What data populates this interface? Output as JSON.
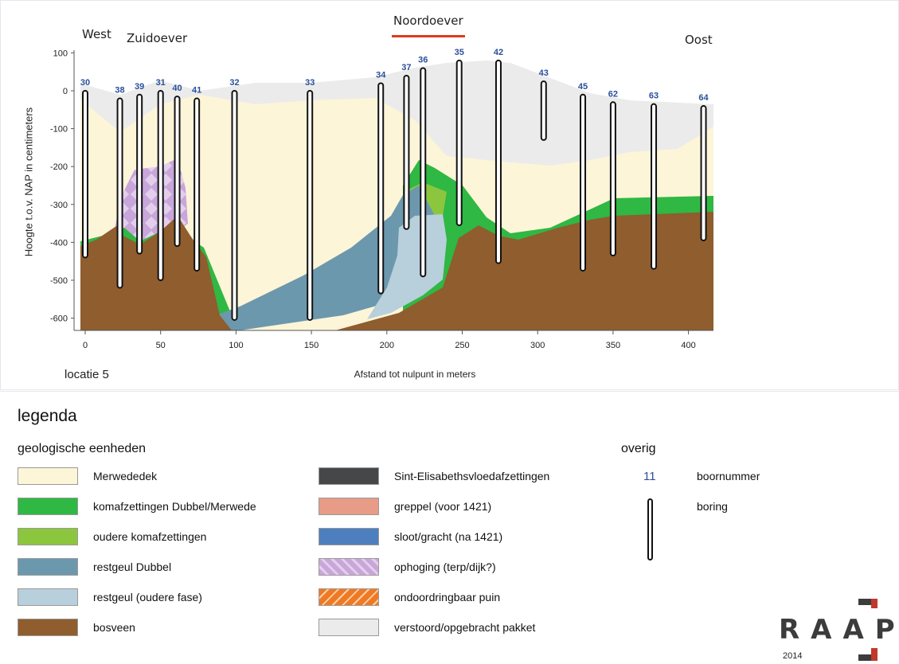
{
  "header": {
    "west": "West",
    "zuidoever": "Zuidoever",
    "noordoever": "Noordoever",
    "oost": "Oost"
  },
  "axes": {
    "ylabel": "Hoogte t.o.v. NAP in centimeters",
    "xlabel": "Afstand tot nulpunt in meters",
    "yticks": [
      "100",
      "0",
      "-100",
      "-200",
      "-300",
      "-400",
      "-500",
      "-600"
    ],
    "xticks": [
      "0",
      "50",
      "100",
      "150",
      "200",
      "250",
      "300",
      "350",
      "400"
    ]
  },
  "location_label": "locatie 5",
  "borings": [
    {
      "num": "30",
      "x": 0,
      "top": 0,
      "bottom": -440
    },
    {
      "num": "38",
      "x": 23,
      "top": -20,
      "bottom": -520
    },
    {
      "num": "39",
      "x": 36,
      "top": -10,
      "bottom": -430
    },
    {
      "num": "31",
      "x": 50,
      "top": 0,
      "bottom": -500
    },
    {
      "num": "40",
      "x": 61,
      "top": -15,
      "bottom": -410
    },
    {
      "num": "41",
      "x": 74,
      "top": -20,
      "bottom": -475
    },
    {
      "num": "32",
      "x": 99,
      "top": 0,
      "bottom": -605
    },
    {
      "num": "33",
      "x": 149,
      "top": 0,
      "bottom": -605
    },
    {
      "num": "34",
      "x": 196,
      "top": 20,
      "bottom": -535
    },
    {
      "num": "37",
      "x": 213,
      "top": 40,
      "bottom": -365
    },
    {
      "num": "36",
      "x": 224,
      "top": 60,
      "bottom": -490
    },
    {
      "num": "35",
      "x": 248,
      "top": 80,
      "bottom": -355
    },
    {
      "num": "42",
      "x": 274,
      "top": 80,
      "bottom": -455
    },
    {
      "num": "43",
      "x": 304,
      "top": 25,
      "bottom": -130
    },
    {
      "num": "45",
      "x": 330,
      "top": -10,
      "bottom": -475
    },
    {
      "num": "62",
      "x": 350,
      "top": -30,
      "bottom": -435
    },
    {
      "num": "63",
      "x": 377,
      "top": -35,
      "bottom": -470
    },
    {
      "num": "64",
      "x": 410,
      "top": -40,
      "bottom": -395
    }
  ],
  "legend": {
    "title": "legenda",
    "geo_title": "geologische eenheden",
    "other_title": "overig",
    "left": [
      {
        "label": "Merwededek",
        "color": "#fdf5d8"
      },
      {
        "label": "komafzettingen Dubbel/Merwede",
        "color": "#2fb843"
      },
      {
        "label": "oudere komafzettingen",
        "color": "#8cc63f"
      },
      {
        "label": "restgeul Dubbel",
        "color": "#6c98ad"
      },
      {
        "label": "restgeul (oudere fase)",
        "color": "#b8cfdc"
      },
      {
        "label": "bosveen",
        "color": "#8f5d2e"
      }
    ],
    "middle": [
      {
        "label": "Sint-Elisabethsvloedafzettingen",
        "color": "#464749"
      },
      {
        "label": "greppel (voor 1421)",
        "color": "#e89b86"
      },
      {
        "label": "sloot/gracht (na 1421)",
        "color": "#4d7fbf"
      },
      {
        "label": "ophoging (terp/dijk?)",
        "color": "#c9a6da"
      },
      {
        "label": "ondoordringbaar puin",
        "color": "#ee7a26"
      },
      {
        "label": "verstoord/opgebracht pakket",
        "color": "#ebebeb"
      }
    ],
    "other": {
      "number_sample": "11",
      "number_label": "boornummer",
      "boring_label": "boring"
    }
  },
  "logo": {
    "text": "RAAP",
    "year": "2014"
  }
}
